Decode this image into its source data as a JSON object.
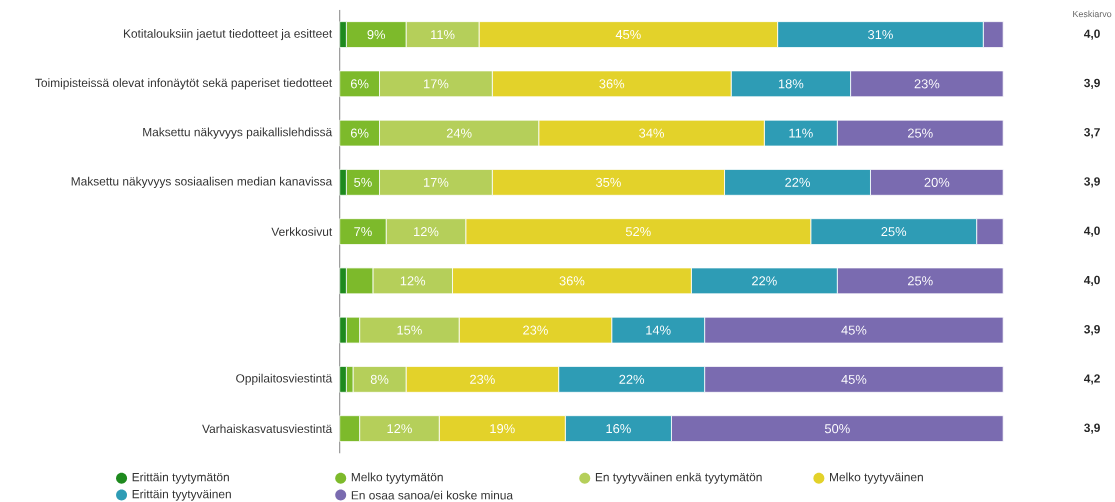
{
  "chart_data": {
    "type": "bar",
    "orientation": "horizontal",
    "stacked": true,
    "categories": [
      "Kotitalouksiin jaetut tiedotteet ja esitteet",
      "Toimipisteissä olevat infonäytöt sekä paperiset tiedotteet",
      "Maksettu näkyvyys paikallislehdissä",
      "Maksettu näkyvyys sosiaalisen median kanavissa",
      "Verkkosivut",
      null,
      null,
      "Oppilaitosviestintä",
      "Varhaiskasvatusviestintä"
    ],
    "series": [
      {
        "name": "Erittäin tyytymätön",
        "color": "#1e8a1e",
        "values": [
          1,
          0,
          0,
          1,
          0,
          1,
          1,
          1,
          0
        ],
        "value_labels": [
          null,
          null,
          null,
          null,
          null,
          null,
          null,
          null,
          null
        ]
      },
      {
        "name": "Melko tyytymätön",
        "color": "#7dba2b",
        "values": [
          9,
          6,
          6,
          5,
          7,
          4,
          2,
          1,
          3
        ],
        "value_labels": [
          "9%",
          "6%",
          "6%",
          "5%",
          "7%",
          null,
          null,
          null,
          null
        ]
      },
      {
        "name": "En tyytyväinen enkä tyytymätön",
        "color": "#b5cf5a",
        "values": [
          11,
          17,
          24,
          17,
          12,
          12,
          15,
          8,
          12
        ],
        "value_labels": [
          "11%",
          "17%",
          "24%",
          "17%",
          "12%",
          "12%",
          "15%",
          "8%",
          "12%"
        ]
      },
      {
        "name": "Melko tyytyväinen",
        "color": "#e3d22a",
        "values": [
          45,
          36,
          34,
          35,
          52,
          36,
          23,
          23,
          19
        ],
        "value_labels": [
          "45%",
          "36%",
          "34%",
          "35%",
          "52%",
          "36%",
          "23%",
          "23%",
          "19%"
        ]
      },
      {
        "name": "Erittäin tyytyväinen",
        "color": "#2e9cb5",
        "values": [
          31,
          18,
          11,
          22,
          25,
          22,
          14,
          22,
          16
        ],
        "value_labels": [
          "31%",
          "18%",
          "11%",
          "22%",
          "25%",
          "22%",
          "14%",
          "22%",
          "16%"
        ]
      },
      {
        "name": "En osaa sanoa/ei koske minua",
        "color": "#7a6bb0",
        "values": [
          3,
          23,
          25,
          20,
          4,
          25,
          45,
          45,
          50
        ],
        "value_labels": [
          null,
          "23%",
          "25%",
          "20%",
          null,
          "25%",
          "45%",
          "45%",
          "50%"
        ]
      }
    ],
    "tick_labels": "y",
    "legend": "bottom",
    "annotations": [
      "Keskiarvo",
      "4,0",
      "3,9",
      "3,7",
      "3,9",
      "4,0",
      "4,0",
      "3,9",
      "4,2",
      "3,9"
    ]
  }
}
